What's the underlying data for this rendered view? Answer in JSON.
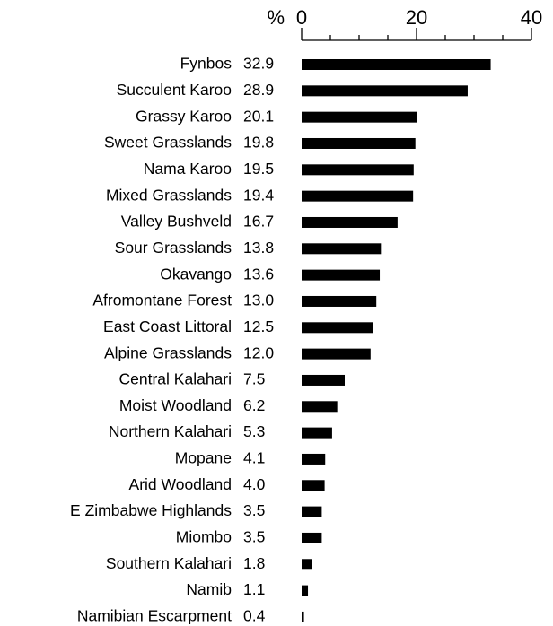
{
  "chart_data": {
    "type": "bar",
    "orientation": "horizontal",
    "xlabel": "%",
    "categories": [
      "Fynbos",
      "Succulent Karoo",
      "Grassy Karoo",
      "Sweet Grasslands",
      "Nama Karoo",
      "Mixed Grasslands",
      "Valley Bushveld",
      "Sour Grasslands",
      "Okavango",
      "Afromontane Forest",
      "East Coast Littoral",
      "Alpine Grasslands",
      "Central Kalahari",
      "Moist Woodland",
      "Northern Kalahari",
      "Mopane",
      "Arid Woodland",
      "E Zimbabwe Highlands",
      "Miombo",
      "Southern Kalahari",
      "Namib",
      "Namibian Escarpment"
    ],
    "values": [
      32.9,
      28.9,
      20.1,
      19.8,
      19.5,
      19.4,
      16.7,
      13.8,
      13.6,
      13.0,
      12.5,
      12.0,
      7.5,
      6.2,
      5.3,
      4.1,
      4.0,
      3.5,
      3.5,
      1.8,
      1.1,
      0.4
    ],
    "value_labels": [
      "32.9",
      "28.9",
      "20.1",
      "19.8",
      "19.5",
      "19.4",
      "16.7",
      "13.8",
      "13.6",
      "13.0",
      "12.5",
      "12.0",
      "7.5",
      "6.2",
      "5.3",
      "4.1",
      "4.0",
      "3.5",
      "3.5",
      "1.8",
      "1.1",
      "0.4"
    ],
    "color": "#000000",
    "xlim": [
      0,
      40
    ],
    "xticks": [
      0,
      20,
      40
    ],
    "x_minor_ticks": [
      5,
      10,
      15,
      25,
      30,
      35
    ]
  }
}
